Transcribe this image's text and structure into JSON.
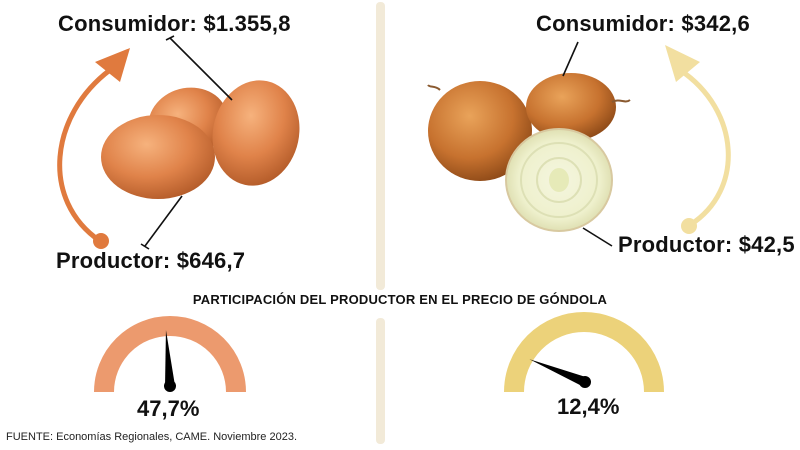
{
  "egg": {
    "consumer_label": "Consumidor: $1.355,8",
    "producer_label": "Productor: $646,7",
    "share_label": "47,7%",
    "share_fraction": 0.477,
    "gauge_color": "#ec9a6e",
    "arrow_color": "#e07a3e"
  },
  "onion": {
    "consumer_label": "Consumidor: $342,6",
    "producer_label": "Productor: $42,5",
    "share_label": "12,4%",
    "share_fraction": 0.124,
    "gauge_color": "#ecd27a",
    "arrow_color": "#f2dfa0"
  },
  "section_title": "PARTICIPACIÓN DEL PRODUCTOR EN EL PRECIO DE GÓNDOLA",
  "source": "FUENTE: Economías Regionales, CAME. Noviembre 2023.",
  "divider_color": "#f2ead8"
}
